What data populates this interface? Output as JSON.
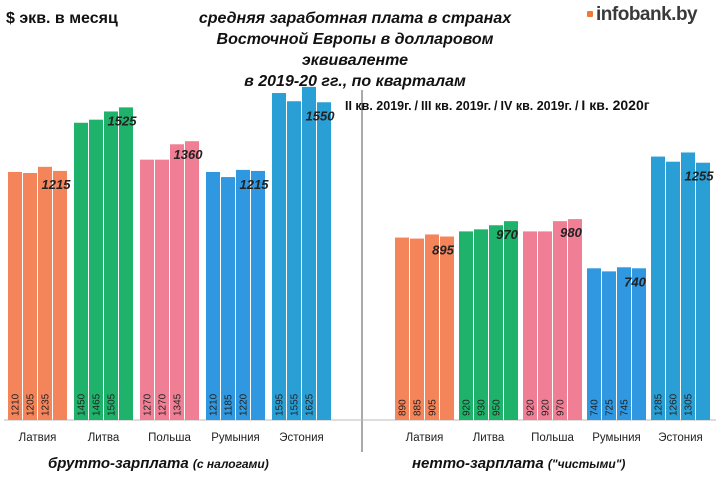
{
  "header": {
    "ylabel": "$ экв. в месяц",
    "title_lines": [
      "средняя заработная плата в странах",
      "Восточной Европы в долларовом эквиваленте",
      "в 2019-20 гг., по кварталам"
    ],
    "logo": "infobank.by"
  },
  "legend": {
    "items": [
      "II кв. 2019г.",
      "III кв. 2019г.",
      "IV кв. 2019г.",
      "I кв. 2020г"
    ],
    "separator": "/"
  },
  "sections": {
    "gross": {
      "label": "брутто-зарплата",
      "note": "(с налогами)"
    },
    "net": {
      "label": "нетто-зарплата",
      "note": "(\"чистыми\")"
    }
  },
  "chart_data": [
    {
      "type": "bar",
      "title": "брутто-зарплата (с налогами)",
      "ylabel": "$ экв. в месяц",
      "ylim": [
        0,
        1700
      ],
      "categories": [
        "Латвия",
        "Литва",
        "Польша",
        "Румыния",
        "Эстония"
      ],
      "colors": [
        "#f4845a",
        "#1fb26b",
        "#f07f95",
        "#2f98e0",
        "#2a9fd6"
      ],
      "series": [
        {
          "name": "II кв. 2019г.",
          "values": [
            1210,
            1450,
            1270,
            1210,
            1595
          ]
        },
        {
          "name": "III кв. 2019г.",
          "values": [
            1205,
            1465,
            1270,
            1185,
            1555
          ]
        },
        {
          "name": "IV кв. 2019г.",
          "values": [
            1235,
            1505,
            1345,
            1220,
            1625
          ]
        },
        {
          "name": "I кв. 2020г",
          "values": [
            1215,
            1525,
            1360,
            1215,
            1550
          ]
        }
      ],
      "data_labels_bottom": [
        "II кв. 2019г.",
        "III кв. 2019г.",
        "IV кв. 2019г."
      ],
      "data_labels_top": [
        "I кв. 2020г"
      ]
    },
    {
      "type": "bar",
      "title": "нетто-зарплата (\"чистыми\")",
      "ylabel": "$ экв. в месяц",
      "ylim": [
        0,
        1700
      ],
      "categories": [
        "Латвия",
        "Литва",
        "Польша",
        "Румыния",
        "Эстония"
      ],
      "colors": [
        "#f4845a",
        "#1fb26b",
        "#f07f95",
        "#2f98e0",
        "#2a9fd6"
      ],
      "series": [
        {
          "name": "II кв. 2019г.",
          "values": [
            890,
            920,
            920,
            740,
            1285
          ]
        },
        {
          "name": "III кв. 2019г.",
          "values": [
            885,
            930,
            920,
            725,
            1260
          ]
        },
        {
          "name": "IV кв. 2019г.",
          "values": [
            905,
            950,
            970,
            745,
            1305
          ]
        },
        {
          "name": "I кв. 2020г",
          "values": [
            895,
            970,
            980,
            740,
            1255
          ]
        }
      ],
      "data_labels_bottom": [
        "II кв. 2019г.",
        "III кв. 2019г.",
        "IV кв. 2019г."
      ],
      "data_labels_top": [
        "I кв. 2020г"
      ]
    }
  ]
}
